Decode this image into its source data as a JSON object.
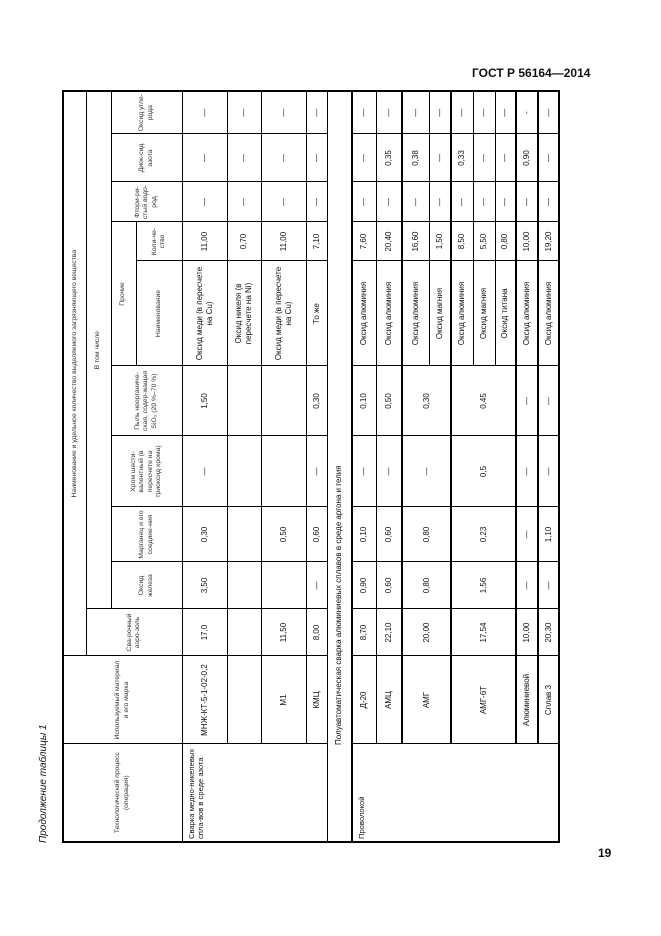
{
  "header": {
    "standard": "ГОСТ Р 56164—2014",
    "page_number": "19",
    "continuation": "Продолжение таблицы 1"
  },
  "table_header": {
    "process": "Технологический процесс (операция)",
    "material": "Используемый материал и его марка",
    "group": "Наименование и удельное количество выделяемого загрязняющего вещества",
    "aerosol": "Сва-рочный аэро-золь",
    "including": "В том числе",
    "fe_oxide": "Оксид железа",
    "manganese": "Марганец и его соедине-ния",
    "chromium": "Хром шести-валентный (в пересчете на триоксид хрома)",
    "dust": "Пыль неорганиче-ская, содер-жащая SiO₂ (20 %–70 %)",
    "other": "Прочие",
    "other_name": "Наименование",
    "other_qty": "Коли-че-ство",
    "hf": "Фтори-ри-стый водо-род",
    "no2": "Диок-сид азота",
    "co": "Оксид угле-рода"
  },
  "sections": [
    {
      "process": "Сварка медно-никелевых спла-вов в среде азота",
      "rows": [
        {
          "material": "МНЖ-КТ-5-1-02-0,2",
          "aerosol": "17,0",
          "fe": "3,50",
          "mn": "0,30",
          "cr": "—",
          "dust": "1,50",
          "name": "Оксид меди (в пересчете на Cu)",
          "qty": "11,00",
          "hf": "—",
          "no2": "—",
          "co": "—"
        },
        {
          "material": "",
          "aerosol": "",
          "fe": "",
          "mn": "",
          "cr": "",
          "dust": "",
          "name": "Оксид никеля (в пересчете на Ni)",
          "qty": "0,70",
          "hf": "—",
          "no2": "—",
          "co": "—"
        },
        {
          "material": "М1",
          "aerosol": "11,50",
          "fe": "",
          "mn": "0,50",
          "cr": "",
          "dust": "",
          "name": "Оксид меди (в пересчете на Cu)",
          "qty": "11,00",
          "hf": "—",
          "no2": "—",
          "co": "—"
        },
        {
          "material": "КМЦ",
          "aerosol": "8,00",
          "fe": "—",
          "mn": "0,60",
          "cr": "—",
          "dust": "0,30",
          "name": "То же",
          "qty": "7,10",
          "hf": "—",
          "no2": "—",
          "co": "—"
        }
      ]
    },
    {
      "caption": "Полуавтоматическая сварка алюминиевых сплавов в среде аргона и гелия",
      "process": "Проволокой",
      "rows": [
        {
          "material": "Д-20",
          "aerosol": "8,70",
          "fe": "0,90",
          "mn": "0,10",
          "cr": "—",
          "dust": "0,10",
          "name": "Оксид алюминия",
          "qty": "7,60",
          "hf": "—",
          "no2": "—",
          "co": "—"
        },
        {
          "material": "АМЦ",
          "aerosol": "22,10",
          "fe": "0,60",
          "mn": "0,60",
          "cr": "—",
          "dust": "0,50",
          "name": "Оксид алюминия",
          "qty": "20,40",
          "hf": "—",
          "no2": "0,35",
          "co": "—"
        },
        {
          "material": "АМГ",
          "aerosol": "20,00",
          "fe": "0,80",
          "mn": "0,80",
          "cr": "—",
          "dust": "0,30",
          "name": "Оксид алюминия",
          "qty": "16,60",
          "hf": "—",
          "no2": "0,38",
          "co": "—"
        },
        {
          "name": "Оксид магния",
          "qty": "1,50",
          "hf": "—",
          "no2": "—",
          "co": "—"
        },
        {
          "material": "АМГ-6Т",
          "aerosol": "17,54",
          "fe": "1,56",
          "mn": "0,23",
          "cr": "0,5",
          "dust": "0,45",
          "name": "Оксид алюминия",
          "qty": "8,50",
          "hf": "—",
          "no2": "0,33",
          "co": "—"
        },
        {
          "name": "Оксид магния",
          "qty": "5,50",
          "hf": "—",
          "no2": "—",
          "co": "—"
        },
        {
          "name": "Оксид титана",
          "qty": "0,80",
          "hf": "—",
          "no2": "—",
          "co": "—"
        },
        {
          "material": "Алюминиевой",
          "aerosol": "10,00",
          "fe": "—",
          "mn": "—",
          "cr": "—",
          "dust": "—",
          "name": "Оксид алюминия",
          "qty": "10,00",
          "hf": "—",
          "no2": "0,90",
          "co": "-"
        },
        {
          "material": "Сплав 3",
          "aerosol": "20,30",
          "fe": "—",
          "mn": "1,10",
          "cr": "—",
          "dust": "—",
          "name": "Оксид алюминия",
          "qty": "19,20",
          "hf": "—",
          "no2": "—",
          "co": "—"
        }
      ]
    }
  ]
}
